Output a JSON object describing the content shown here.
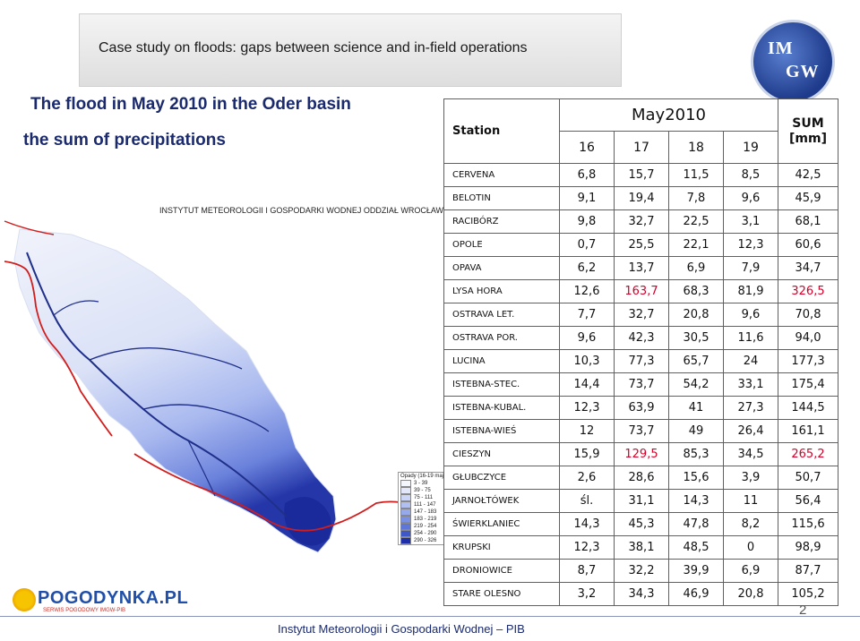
{
  "header": {
    "case_study": "Case study on floods: gaps between science and in-field operations",
    "logo_text_1": "IM",
    "logo_text_2": "GW"
  },
  "titles": {
    "line1": "The flood in May 2010 in the Oder basin",
    "line2": "the sum of precipitations"
  },
  "map": {
    "institute_label": "INSTYTUT METEOROLOGII I GOSPODARKI WODNEJ ODDZIAŁ WROCŁAW",
    "legend_title": "Opady (16-19 maj 2010)",
    "legend_items": [
      {
        "label": "3 - 39",
        "color": "#f4f6fd"
      },
      {
        "label": "39 - 75",
        "color": "#e2e8fa"
      },
      {
        "label": "75 - 111",
        "color": "#cbd5f5"
      },
      {
        "label": "111 - 147",
        "color": "#b1c0f0"
      },
      {
        "label": "147 - 183",
        "color": "#96a9ea"
      },
      {
        "label": "183 - 219",
        "color": "#7a90e2"
      },
      {
        "label": "219 - 254",
        "color": "#5e76d8"
      },
      {
        "label": "254 - 290",
        "color": "#3f58c8"
      },
      {
        "label": "290 - 326",
        "color": "#1f2fa8"
      }
    ]
  },
  "table": {
    "station_header": "Station",
    "month_header": "May2010",
    "days": [
      "16",
      "17",
      "18",
      "19"
    ],
    "sum_header_1": "SUM",
    "sum_header_2": "[mm]",
    "rows": [
      {
        "station": "CERVENA",
        "d16": "6,8",
        "d17": "15,7",
        "d18": "11,5",
        "d19": "8,5",
        "sum": "42,5"
      },
      {
        "station": "BELOTIN",
        "d16": "9,1",
        "d17": "19,4",
        "d18": "7,8",
        "d19": "9,6",
        "sum": "45,9"
      },
      {
        "station": "RACIBÓRZ",
        "d16": "9,8",
        "d17": "32,7",
        "d18": "22,5",
        "d19": "3,1",
        "sum": "68,1"
      },
      {
        "station": "OPOLE",
        "d16": "0,7",
        "d17": "25,5",
        "d18": "22,1",
        "d19": "12,3",
        "sum": "60,6"
      },
      {
        "station": "OPAVA",
        "d16": "6,2",
        "d17": "13,7",
        "d18": "6,9",
        "d19": "7,9",
        "sum": "34,7"
      },
      {
        "station": "LYSA HORA",
        "d16": "12,6",
        "d17": "163,7",
        "d18": "68,3",
        "d19": "81,9",
        "sum": "326,5"
      },
      {
        "station": "OSTRAVA LET.",
        "d16": "7,7",
        "d17": "32,7",
        "d18": "20,8",
        "d19": "9,6",
        "sum": "70,8"
      },
      {
        "station": "OSTRAVA POR.",
        "d16": "9,6",
        "d17": "42,3",
        "d18": "30,5",
        "d19": "11,6",
        "sum": "94,0"
      },
      {
        "station": "LUCINA",
        "d16": "10,3",
        "d17": "77,3",
        "d18": "65,7",
        "d19": "24",
        "sum": "177,3"
      },
      {
        "station": "ISTEBNA-STEC.",
        "d16": "14,4",
        "d17": "73,7",
        "d18": "54,2",
        "d19": "33,1",
        "sum": "175,4"
      },
      {
        "station": "ISTEBNA-KUBAL.",
        "d16": "12,3",
        "d17": "63,9",
        "d18": "41",
        "d19": "27,3",
        "sum": "144,5"
      },
      {
        "station": "ISTEBNA-WIEŚ",
        "d16": "12",
        "d17": "73,7",
        "d18": "49",
        "d19": "26,4",
        "sum": "161,1"
      },
      {
        "station": "CIESZYN",
        "d16": "15,9",
        "d17": "129,5",
        "d18": "85,3",
        "d19": "34,5",
        "sum": "265,2"
      },
      {
        "station": "GŁUBCZYCE",
        "d16": "2,6",
        "d17": "28,6",
        "d18": "15,6",
        "d19": "3,9",
        "sum": "50,7"
      },
      {
        "station": "JARNOŁTÓWEK",
        "d16": "śl.",
        "d17": "31,1",
        "d18": "14,3",
        "d19": "11",
        "sum": "56,4"
      },
      {
        "station": "ŚWIERKLANIEC",
        "d16": "14,3",
        "d17": "45,3",
        "d18": "47,8",
        "d19": "8,2",
        "sum": "115,6"
      },
      {
        "station": "KRUPSKI",
        "d16": "12,3",
        "d17": "38,1",
        "d18": "48,5",
        "d19": "0",
        "sum": "98,9"
      },
      {
        "station": "DRONIOWICE",
        "d16": "8,7",
        "d17": "32,2",
        "d18": "39,9",
        "d19": "6,9",
        "sum": "87,7"
      },
      {
        "station": "STARE OLESNO",
        "d16": "3,2",
        "d17": "34,3",
        "d18": "46,9",
        "d19": "20,8",
        "sum": "105,2"
      }
    ],
    "highlight_color": "#d4002a",
    "highlighted_values": [
      "163,7",
      "326,5",
      "129,5",
      "265,2"
    ]
  },
  "footer": {
    "institute": "Instytut Meteorologii i Gospodarki Wodnej – PIB",
    "page_number": "2",
    "pogodynka_title": "POGODYNKA.PL",
    "pogodynka_sub": "SERWIS POGODOWY IMGW-PIB"
  }
}
